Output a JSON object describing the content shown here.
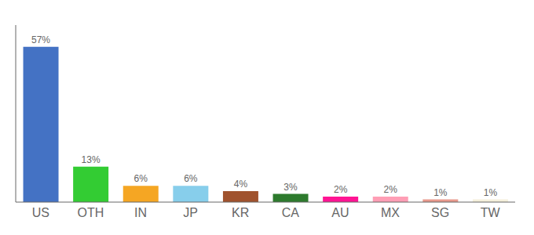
{
  "chart_data": {
    "type": "bar",
    "categories": [
      "US",
      "OTH",
      "IN",
      "JP",
      "KR",
      "CA",
      "AU",
      "MX",
      "SG",
      "TW"
    ],
    "values": [
      57,
      13,
      6,
      6,
      4,
      3,
      2,
      2,
      1,
      1
    ],
    "value_labels": [
      "57%",
      "13%",
      "6%",
      "6%",
      "4%",
      "3%",
      "2%",
      "2%",
      "1%",
      "1%"
    ],
    "colors": [
      "#4472c4",
      "#33cc33",
      "#f5a623",
      "#87ceeb",
      "#a0522d",
      "#2d7a2d",
      "#ff1493",
      "#ff9eb5",
      "#e8998d",
      "#f5f0dc"
    ],
    "ylim": [
      0,
      65
    ],
    "data_labels": true,
    "tick_labels": "x",
    "grid": false
  }
}
